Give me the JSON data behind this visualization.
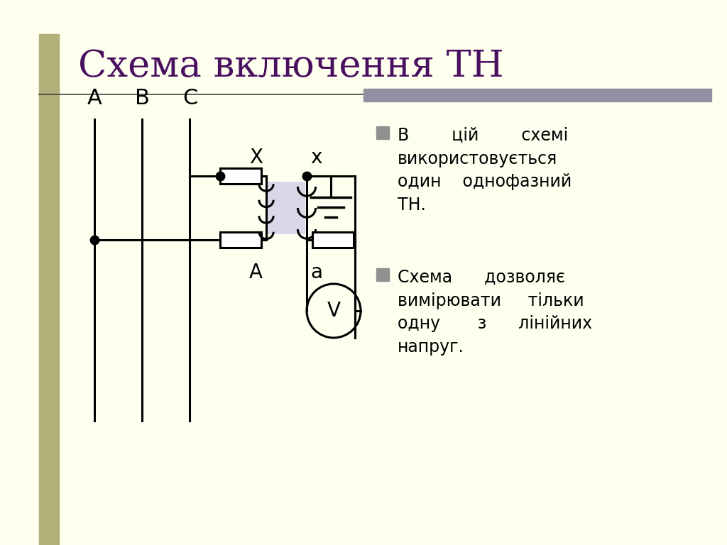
{
  "title": "Схема включення ТН",
  "title_color": "#4A1060",
  "title_fontsize": 38,
  "bg_color": "#FFFFF0",
  "left_bar_color": "#B0B078",
  "right_bar_color": "#9090A0",
  "bullet_color": "#909090",
  "line_color": "#000000",
  "core_color": "#D8D8E8",
  "label_A": "A",
  "label_B": "B",
  "label_C": "C",
  "label_A2": "A",
  "label_a": "a",
  "label_X": "X",
  "label_x": "x",
  "label_V": "V"
}
